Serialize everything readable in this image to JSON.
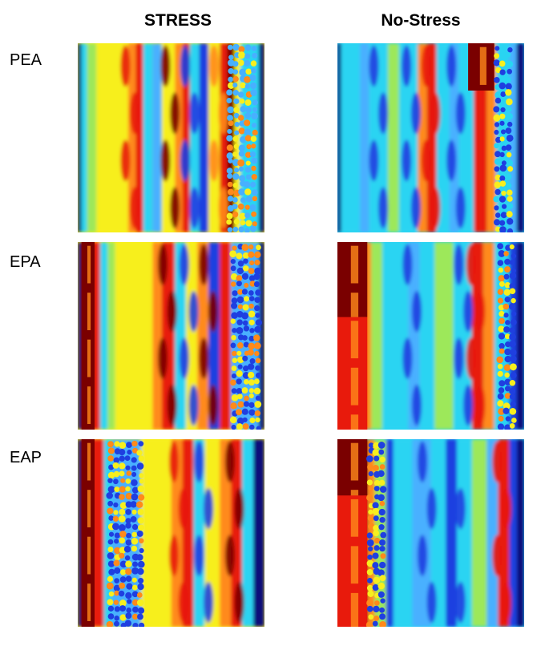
{
  "columns": {
    "stress": "STRESS",
    "no_stress": "No-Stress"
  },
  "rows": {
    "pea": "PEA",
    "epa": "EPA",
    "eap": "EAP"
  },
  "colormap": {
    "darkred": "#7a0000",
    "red": "#e81a0c",
    "orange": "#ff8a1a",
    "yellow": "#f7ef1e",
    "lightgreen": "#9de85a",
    "cyan": "#29d4f2",
    "lightblue": "#48b0ff",
    "blue": "#1f3fe0",
    "darkblue": "#0a0a7a"
  }
}
